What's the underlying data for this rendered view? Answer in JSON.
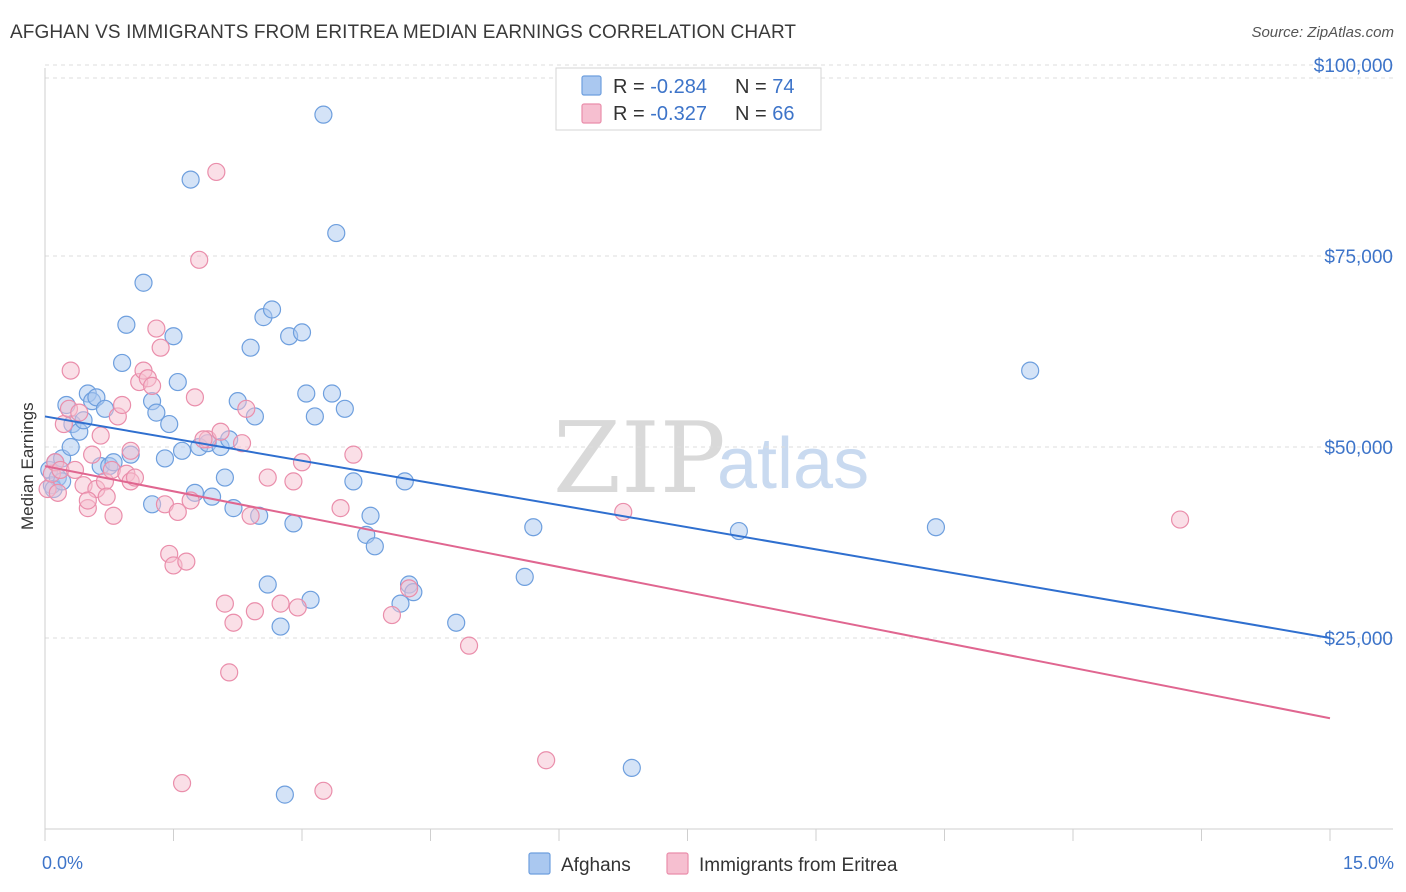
{
  "title": "AFGHAN VS IMMIGRANTS FROM ERITREA MEDIAN EARNINGS CORRELATION CHART",
  "source": "Source: ZipAtlas.com",
  "watermark": {
    "zip": "ZIP",
    "atlas": "atlas"
  },
  "legend_top": [
    {
      "r_label": "R = ",
      "r_value": "-0.284",
      "n_label": "N = ",
      "n_value": "74"
    },
    {
      "r_label": "R = ",
      "r_value": "-0.327",
      "n_label": "N = ",
      "n_value": "66"
    }
  ],
  "legend_bottom": [
    "Afghans",
    "Immigrants from Eritrea"
  ],
  "colors": {
    "afghans_fill": "#aac8f0",
    "afghans_stroke": "#6e9fde",
    "afghans_line": "#2f6fcf",
    "eritrea_fill": "#f6bfd0",
    "eritrea_stroke": "#ea8eab",
    "eritrea_line": "#e06690",
    "tick_text": "#3d74c9",
    "grid": "#dddddd"
  },
  "chart_data": {
    "type": "scatter",
    "title": "AFGHAN VS IMMIGRANTS FROM ERITREA MEDIAN EARNINGS CORRELATION CHART",
    "xlabel": "",
    "ylabel": "Median Earnings",
    "xlim": [
      0,
      15
    ],
    "ylim": [
      0,
      105000
    ],
    "x_tick_labels": [
      "0.0%",
      "15.0%"
    ],
    "y_ticks": [
      25000,
      50000,
      75000,
      100000
    ],
    "y_tick_labels": [
      "$25,000",
      "$50,000",
      "$75,000",
      "$100,000"
    ],
    "grid": "horizontal dashed",
    "legend_placement": "top-center",
    "series": [
      {
        "name": "Afghans",
        "r": -0.284,
        "n": 74,
        "trend": {
          "x": [
            0,
            15
          ],
          "y": [
            54000,
            25000
          ]
        },
        "points": [
          [
            0.05,
            47000
          ],
          [
            0.08,
            45000
          ],
          [
            0.12,
            48000
          ],
          [
            0.15,
            46000
          ],
          [
            0.1,
            44500
          ],
          [
            0.2,
            48500
          ],
          [
            0.25,
            55500
          ],
          [
            0.3,
            50000
          ],
          [
            0.32,
            53000
          ],
          [
            0.4,
            52000
          ],
          [
            0.45,
            53500
          ],
          [
            0.5,
            57000
          ],
          [
            0.55,
            56000
          ],
          [
            0.6,
            56500
          ],
          [
            0.65,
            47500
          ],
          [
            0.7,
            55000
          ],
          [
            0.75,
            47500
          ],
          [
            0.8,
            48000
          ],
          [
            0.9,
            61000
          ],
          [
            0.95,
            66000
          ],
          [
            1.15,
            71500
          ],
          [
            1.0,
            49000
          ],
          [
            1.25,
            56000
          ],
          [
            1.3,
            54500
          ],
          [
            1.4,
            48500
          ],
          [
            1.45,
            53000
          ],
          [
            1.5,
            64500
          ],
          [
            1.55,
            58500
          ],
          [
            1.6,
            49500
          ],
          [
            1.7,
            85000
          ],
          [
            1.75,
            44000
          ],
          [
            1.8,
            50000
          ],
          [
            1.9,
            50500
          ],
          [
            1.95,
            43500
          ],
          [
            2.05,
            50000
          ],
          [
            2.1,
            46000
          ],
          [
            2.15,
            51000
          ],
          [
            2.2,
            42000
          ],
          [
            2.25,
            56000
          ],
          [
            2.4,
            63000
          ],
          [
            2.45,
            54000
          ],
          [
            2.5,
            41000
          ],
          [
            2.55,
            67000
          ],
          [
            2.6,
            32000
          ],
          [
            2.65,
            68000
          ],
          [
            2.75,
            26500
          ],
          [
            2.8,
            4500
          ],
          [
            2.85,
            64500
          ],
          [
            2.9,
            40000
          ],
          [
            3.0,
            65000
          ],
          [
            3.05,
            57000
          ],
          [
            3.1,
            30000
          ],
          [
            3.15,
            54000
          ],
          [
            3.25,
            93500
          ],
          [
            3.35,
            57000
          ],
          [
            3.4,
            78000
          ],
          [
            3.5,
            55000
          ],
          [
            3.6,
            45500
          ],
          [
            3.75,
            38500
          ],
          [
            3.8,
            41000
          ],
          [
            3.85,
            37000
          ],
          [
            4.15,
            29500
          ],
          [
            4.2,
            45500
          ],
          [
            4.25,
            32000
          ],
          [
            4.3,
            31000
          ],
          [
            4.8,
            27000
          ],
          [
            5.6,
            33000
          ],
          [
            5.7,
            39500
          ],
          [
            6.85,
            8000
          ],
          [
            8.1,
            39000
          ],
          [
            10.4,
            39500
          ],
          [
            11.5,
            60000
          ],
          [
            0.2,
            45500
          ],
          [
            1.25,
            42500
          ]
        ]
      },
      {
        "name": "Immigrants from Eritrea",
        "r": -0.327,
        "n": 66,
        "trend": {
          "x": [
            0,
            15
          ],
          "y": [
            47500,
            14500
          ]
        },
        "points": [
          [
            0.03,
            44500
          ],
          [
            0.08,
            46500
          ],
          [
            0.12,
            48000
          ],
          [
            0.18,
            47000
          ],
          [
            0.22,
            53000
          ],
          [
            0.28,
            55000
          ],
          [
            0.3,
            60000
          ],
          [
            0.35,
            47000
          ],
          [
            0.4,
            54500
          ],
          [
            0.45,
            45000
          ],
          [
            0.5,
            42000
          ],
          [
            0.55,
            49000
          ],
          [
            0.6,
            44500
          ],
          [
            0.65,
            51500
          ],
          [
            0.7,
            45500
          ],
          [
            0.72,
            43500
          ],
          [
            0.78,
            47000
          ],
          [
            0.8,
            41000
          ],
          [
            0.85,
            54000
          ],
          [
            0.9,
            55500
          ],
          [
            0.95,
            46500
          ],
          [
            1.0,
            45500
          ],
          [
            1.05,
            46000
          ],
          [
            1.1,
            58500
          ],
          [
            1.15,
            60000
          ],
          [
            1.2,
            59000
          ],
          [
            1.25,
            58000
          ],
          [
            1.3,
            65500
          ],
          [
            1.35,
            63000
          ],
          [
            1.4,
            42500
          ],
          [
            1.45,
            36000
          ],
          [
            1.5,
            34500
          ],
          [
            1.55,
            41500
          ],
          [
            1.6,
            6000
          ],
          [
            1.65,
            35000
          ],
          [
            1.7,
            43000
          ],
          [
            1.75,
            56500
          ],
          [
            1.8,
            74500
          ],
          [
            1.9,
            51000
          ],
          [
            2.0,
            86000
          ],
          [
            2.05,
            52000
          ],
          [
            2.1,
            29500
          ],
          [
            2.15,
            20500
          ],
          [
            2.2,
            27000
          ],
          [
            2.3,
            50500
          ],
          [
            2.35,
            55000
          ],
          [
            2.4,
            41000
          ],
          [
            2.45,
            28500
          ],
          [
            2.6,
            46000
          ],
          [
            2.9,
            45500
          ],
          [
            2.95,
            29000
          ],
          [
            3.0,
            48000
          ],
          [
            3.25,
            5000
          ],
          [
            3.45,
            42000
          ],
          [
            3.6,
            49000
          ],
          [
            4.05,
            28000
          ],
          [
            4.25,
            31500
          ],
          [
            4.95,
            24000
          ],
          [
            5.85,
            9000
          ],
          [
            6.75,
            41500
          ],
          [
            13.25,
            40500
          ],
          [
            0.15,
            44000
          ],
          [
            0.5,
            43000
          ],
          [
            1.0,
            49500
          ],
          [
            1.85,
            51000
          ],
          [
            2.75,
            29500
          ]
        ]
      }
    ]
  }
}
